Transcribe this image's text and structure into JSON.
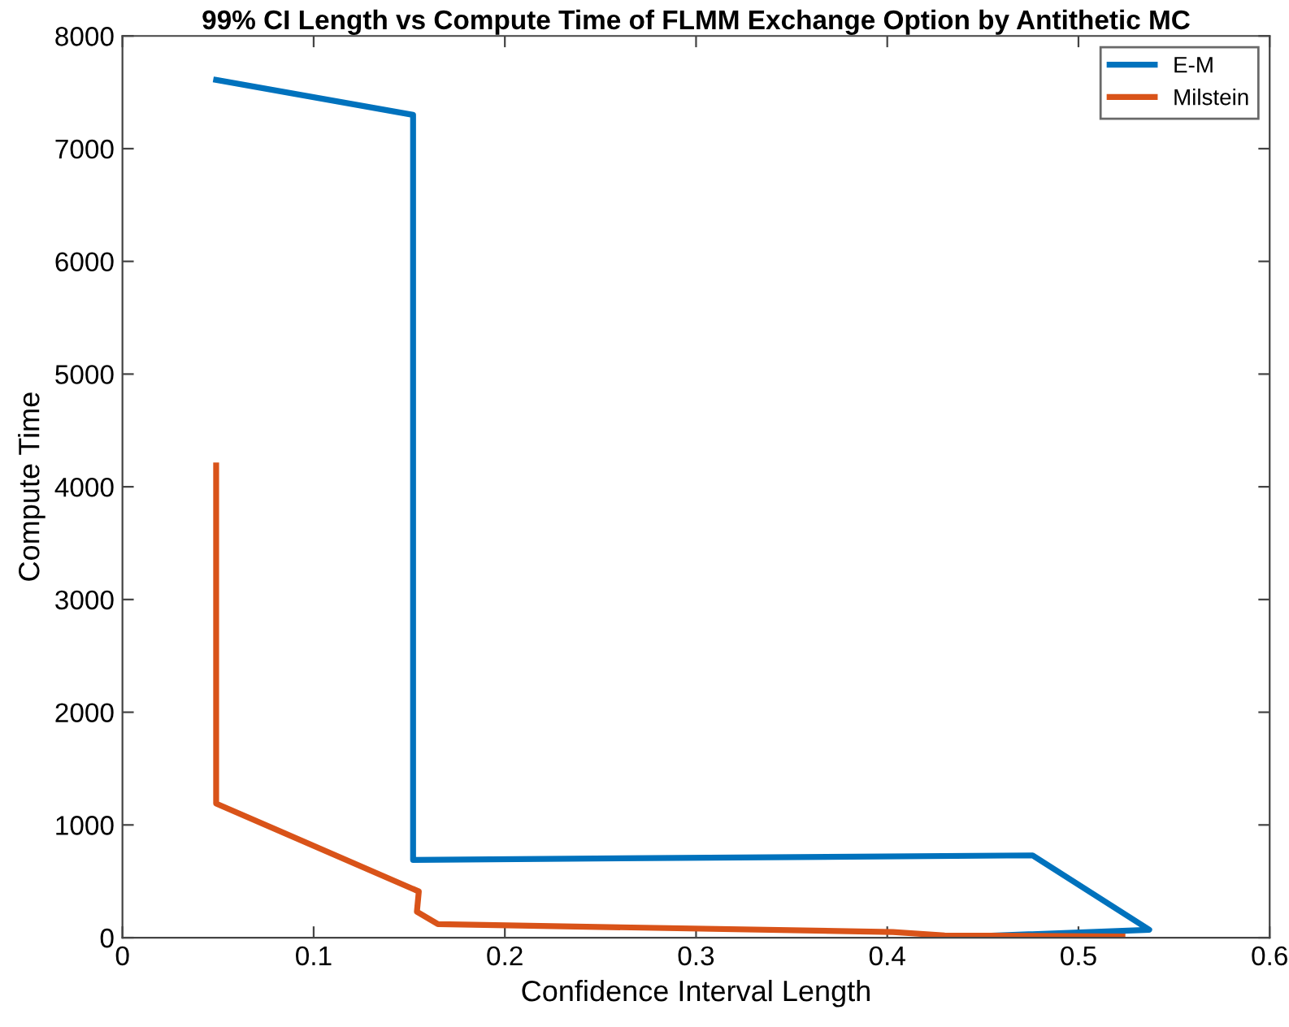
{
  "chart_data": {
    "type": "line",
    "title": "99% CI Length vs Compute Time of FLMM Exchange Option by Antithetic MC",
    "xlabel": "Confidence Interval Length",
    "ylabel": "Compute Time",
    "series": [
      {
        "name": "E-M",
        "color": "#0072bd",
        "x": [
          0.049,
          0.152,
          0.152,
          0.476,
          0.537,
          0.428
        ],
        "values": [
          7610,
          7300,
          690,
          730,
          70,
          0
        ]
      },
      {
        "name": "Milstein",
        "color": "#d95319",
        "x": [
          0.049,
          0.049,
          0.155,
          0.154,
          0.165,
          0.403,
          0.43,
          0.523
        ],
        "values": [
          4190,
          1190,
          410,
          230,
          120,
          50,
          20,
          10
        ]
      }
    ],
    "xlim": [
      0,
      0.6
    ],
    "xticks": [
      0,
      0.1,
      0.2,
      0.3,
      0.4,
      0.5,
      0.6
    ],
    "ylim": [
      0,
      8000
    ],
    "yticks": [
      0,
      1000,
      2000,
      3000,
      4000,
      5000,
      6000,
      7000,
      8000
    ],
    "grid": false,
    "legend": "top right",
    "marker": "none",
    "line_style": "solid"
  }
}
